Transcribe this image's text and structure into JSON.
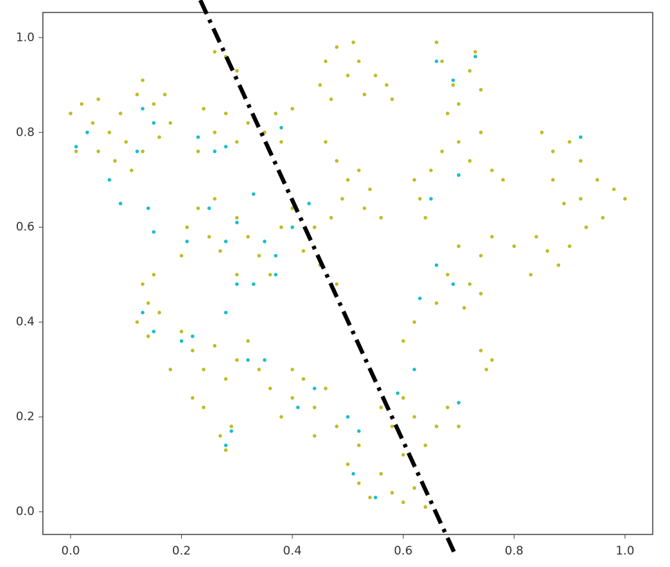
{
  "chart_data": {
    "type": "scatter",
    "series": [
      {
        "color": "#bcbd22",
        "x": [
          0.0,
          0.02,
          0.04,
          0.05,
          0.07,
          0.09,
          0.1,
          0.12,
          0.13,
          0.15,
          0.17,
          0.18,
          0.16,
          0.13,
          0.08,
          0.05,
          0.01,
          0.11,
          0.24,
          0.26,
          0.28,
          0.3,
          0.32,
          0.35,
          0.37,
          0.4,
          0.23,
          0.38,
          0.26,
          0.28,
          0.3,
          0.45,
          0.46,
          0.48,
          0.5,
          0.51,
          0.53,
          0.55,
          0.57,
          0.58,
          0.47,
          0.52,
          0.66,
          0.67,
          0.69,
          0.7,
          0.72,
          0.74,
          0.68,
          0.73,
          0.46,
          0.48,
          0.5,
          0.52,
          0.54,
          0.49,
          0.53,
          0.56,
          0.47,
          0.62,
          0.63,
          0.65,
          0.67,
          0.7,
          0.72,
          0.74,
          0.76,
          0.78,
          0.64,
          0.85,
          0.87,
          0.9,
          0.92,
          0.95,
          0.98,
          1.0,
          0.96,
          0.93,
          0.9,
          0.88,
          0.86,
          0.84,
          0.89,
          0.92,
          0.87,
          0.8,
          0.83,
          0.21,
          0.23,
          0.25,
          0.27,
          0.3,
          0.32,
          0.34,
          0.36,
          0.38,
          0.4,
          0.42,
          0.44,
          0.45,
          0.3,
          0.26,
          0.2,
          0.48,
          0.13,
          0.14,
          0.15,
          0.16,
          0.12,
          0.14,
          0.2,
          0.22,
          0.24,
          0.26,
          0.28,
          0.3,
          0.32,
          0.34,
          0.22,
          0.24,
          0.18,
          0.36,
          0.38,
          0.4,
          0.42,
          0.44,
          0.46,
          0.48,
          0.4,
          0.44,
          0.5,
          0.52,
          0.54,
          0.56,
          0.58,
          0.6,
          0.62,
          0.64,
          0.6,
          0.58,
          0.62,
          0.64,
          0.66,
          0.68,
          0.7,
          0.56,
          0.52,
          0.6,
          0.66,
          0.68,
          0.7,
          0.72,
          0.74,
          0.76,
          0.71,
          0.74,
          0.62,
          0.6,
          0.74,
          0.75,
          0.76,
          0.27,
          0.28,
          0.29
        ],
        "y": [
          0.84,
          0.86,
          0.82,
          0.87,
          0.8,
          0.84,
          0.78,
          0.88,
          0.91,
          0.86,
          0.88,
          0.82,
          0.79,
          0.76,
          0.74,
          0.76,
          0.76,
          0.72,
          0.85,
          0.8,
          0.84,
          0.78,
          0.82,
          0.8,
          0.84,
          0.85,
          0.76,
          0.78,
          0.97,
          0.96,
          0.93,
          0.9,
          0.95,
          0.98,
          0.92,
          0.99,
          0.88,
          0.92,
          0.9,
          0.87,
          0.87,
          0.95,
          0.99,
          0.95,
          0.9,
          0.86,
          0.93,
          0.89,
          0.84,
          0.97,
          0.78,
          0.74,
          0.7,
          0.72,
          0.68,
          0.66,
          0.64,
          0.62,
          0.62,
          0.7,
          0.66,
          0.72,
          0.76,
          0.78,
          0.74,
          0.8,
          0.72,
          0.7,
          0.62,
          0.8,
          0.76,
          0.78,
          0.74,
          0.7,
          0.68,
          0.66,
          0.62,
          0.6,
          0.56,
          0.52,
          0.55,
          0.58,
          0.65,
          0.66,
          0.7,
          0.56,
          0.5,
          0.6,
          0.64,
          0.58,
          0.55,
          0.62,
          0.58,
          0.54,
          0.5,
          0.6,
          0.64,
          0.55,
          0.6,
          0.52,
          0.5,
          0.66,
          0.54,
          0.48,
          0.48,
          0.44,
          0.5,
          0.42,
          0.4,
          0.37,
          0.38,
          0.34,
          0.3,
          0.35,
          0.28,
          0.32,
          0.36,
          0.3,
          0.24,
          0.22,
          0.3,
          0.26,
          0.2,
          0.24,
          0.28,
          0.22,
          0.26,
          0.18,
          0.3,
          0.16,
          0.1,
          0.06,
          0.03,
          0.08,
          0.04,
          0.02,
          0.05,
          0.01,
          0.12,
          0.18,
          0.2,
          0.14,
          0.18,
          0.22,
          0.18,
          0.22,
          0.14,
          0.24,
          0.44,
          0.5,
          0.56,
          0.48,
          0.54,
          0.58,
          0.43,
          0.46,
          0.4,
          0.36,
          0.34,
          0.3,
          0.32,
          0.16,
          0.13,
          0.18
        ]
      },
      {
        "color": "#17becf",
        "x": [
          0.01,
          0.03,
          0.07,
          0.09,
          0.12,
          0.13,
          0.15,
          0.15,
          0.14,
          0.23,
          0.26,
          0.28,
          0.38,
          0.21,
          0.25,
          0.28,
          0.3,
          0.33,
          0.35,
          0.37,
          0.3,
          0.33,
          0.37,
          0.4,
          0.43,
          0.13,
          0.15,
          0.2,
          0.22,
          0.28,
          0.32,
          0.35,
          0.29,
          0.28,
          0.41,
          0.44,
          0.5,
          0.52,
          0.51,
          0.59,
          0.62,
          0.63,
          0.66,
          0.69,
          0.65,
          0.7,
          0.66,
          0.69,
          0.73,
          0.7,
          0.92,
          0.55
        ],
        "y": [
          0.77,
          0.8,
          0.7,
          0.65,
          0.76,
          0.85,
          0.82,
          0.59,
          0.64,
          0.79,
          0.76,
          0.77,
          0.81,
          0.57,
          0.64,
          0.57,
          0.61,
          0.67,
          0.57,
          0.54,
          0.48,
          0.48,
          0.5,
          0.6,
          0.65,
          0.42,
          0.38,
          0.36,
          0.37,
          0.42,
          0.32,
          0.32,
          0.17,
          0.14,
          0.22,
          0.26,
          0.2,
          0.17,
          0.08,
          0.25,
          0.3,
          0.45,
          0.52,
          0.48,
          0.66,
          0.71,
          0.95,
          0.91,
          0.96,
          0.23,
          0.79,
          0.03
        ]
      }
    ],
    "lines": [
      {
        "color": "#000000",
        "style": "dashdot",
        "x": [
          0.234,
          0.696
        ],
        "y": [
          1.079,
          -0.096
        ]
      }
    ],
    "xlim": [
      -0.05,
      1.05
    ],
    "ylim": [
      -0.048,
      1.053
    ],
    "xticks": [
      {
        "value": 0,
        "label": "0.0"
      },
      0.2,
      0.4,
      0.6,
      0.8,
      {
        "value": 1,
        "label": "1.0"
      }
    ],
    "yticks": [
      {
        "value": 0,
        "label": "0.0"
      },
      0.2,
      0.4,
      0.6,
      0.8,
      {
        "value": 1,
        "label": "1.0"
      }
    ],
    "grid": false
  }
}
